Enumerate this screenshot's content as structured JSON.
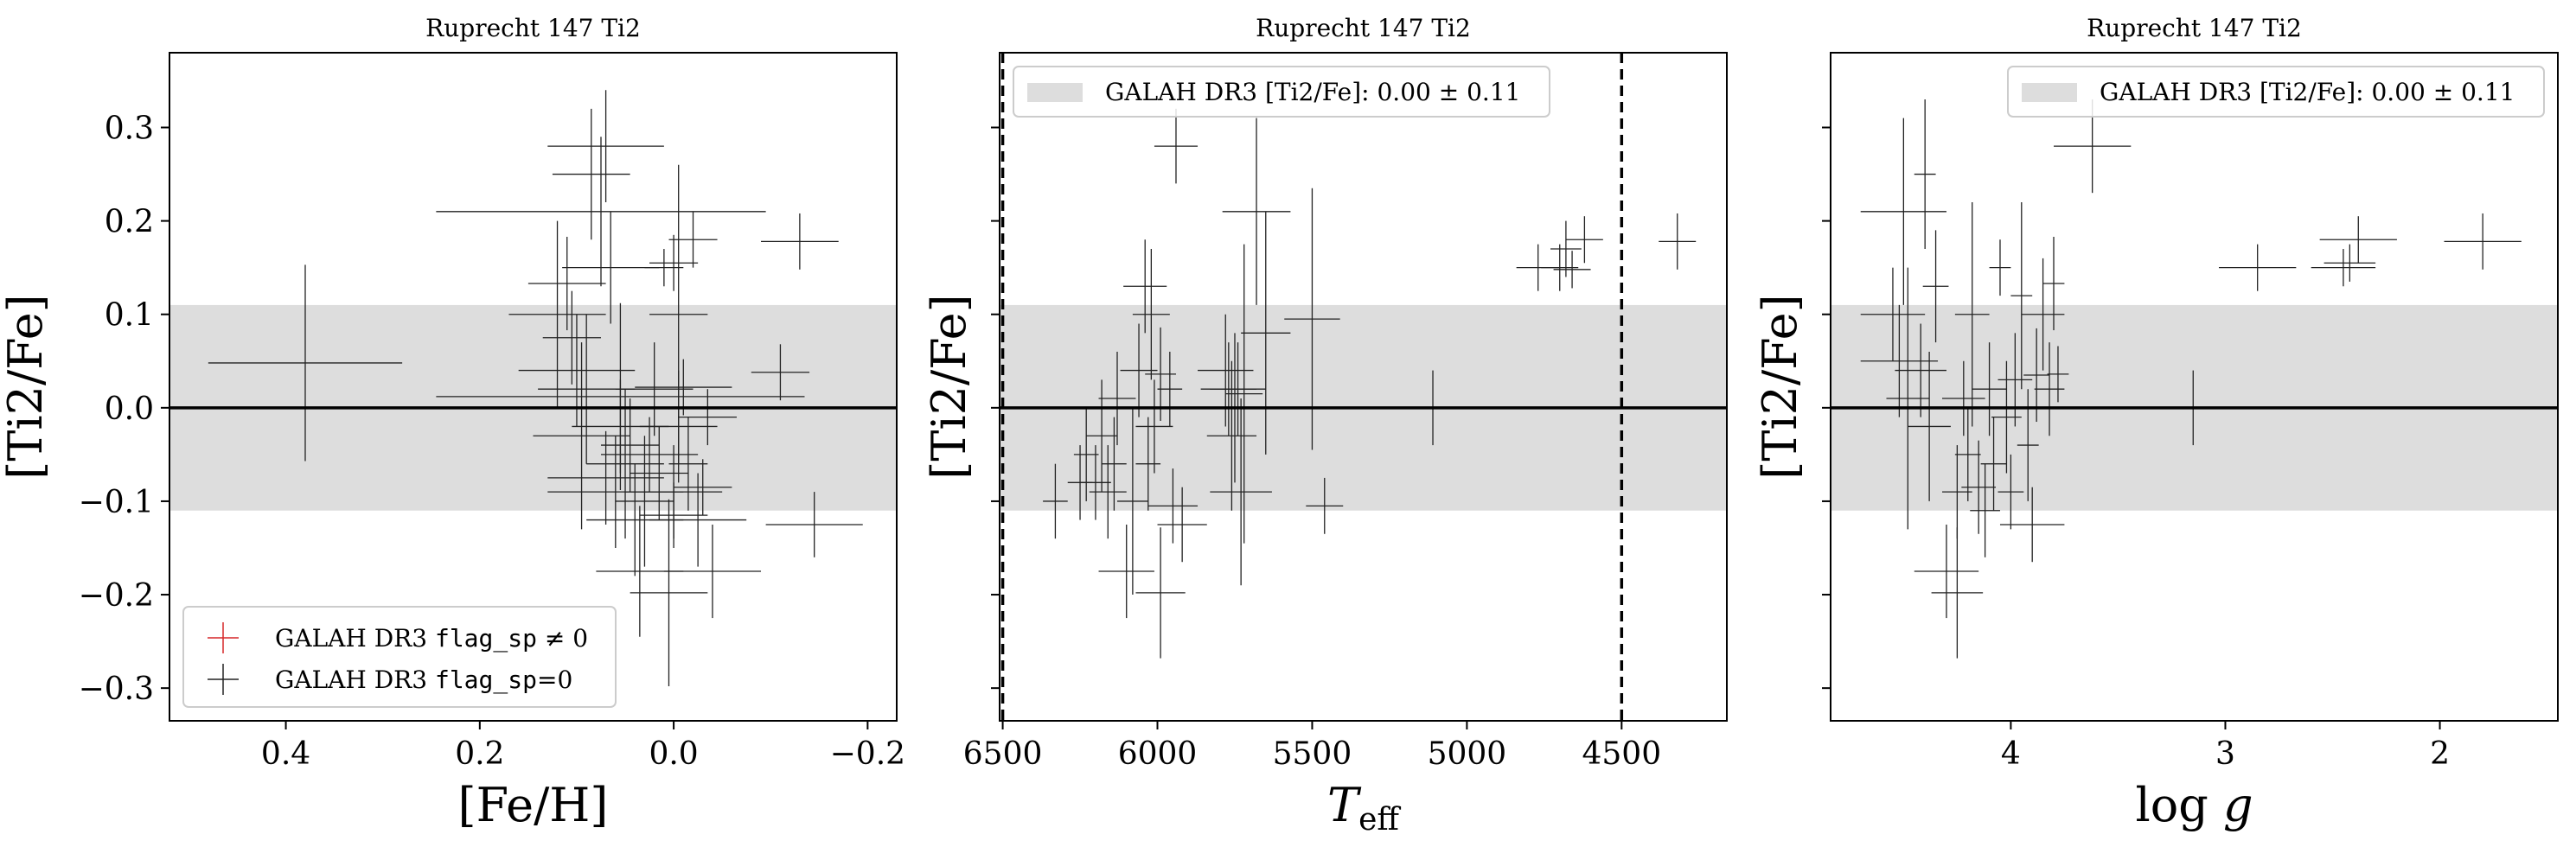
{
  "figure": {
    "colors": {
      "band": "#dddddd",
      "errorbar": "#222222",
      "flagged": "#d62728",
      "frame": "#000000"
    }
  },
  "chart_data": [
    {
      "type": "scatter",
      "title": "Ruprecht 147 Ti2",
      "xlabel": "[Fe/H]",
      "ylabel": "[Ti2/Fe]",
      "xlim": [
        0.52,
        -0.23
      ],
      "ylim": [
        -0.335,
        0.38
      ],
      "x_inverted": true,
      "xticks": [
        0.4,
        0.2,
        0.0,
        -0.2
      ],
      "xtick_labels": [
        "0.4",
        "0.2",
        "0.0",
        "−0.2"
      ],
      "yticks": [
        -0.3,
        -0.2,
        -0.1,
        0.0,
        0.1,
        0.2,
        0.3
      ],
      "ytick_labels": [
        "−0.3",
        "−0.2",
        "−0.1",
        "0.0",
        "0.1",
        "0.2",
        "0.3"
      ],
      "show_ytick_labels": true,
      "band": {
        "center": 0.0,
        "half_width": 0.11
      },
      "hline": 0.0,
      "vlines": [],
      "legend": {
        "position": "lower-left",
        "entries": [
          {
            "marker": "flagged",
            "prefix": "GALAH DR3 ",
            "code": "flag_sp",
            "suffix": " ≠ 0"
          },
          {
            "marker": "plain",
            "prefix": "GALAH DR3 ",
            "code": "flag_sp",
            "suffix": "=0"
          }
        ]
      },
      "points": [
        {
          "x": 0.38,
          "y": 0.048,
          "xerr": 0.1,
          "yerr": 0.105
        },
        {
          "x": 0.12,
          "y": 0.1,
          "xerr": 0.05,
          "yerr": 0.1
        },
        {
          "x": 0.11,
          "y": 0.133,
          "xerr": 0.04,
          "yerr": 0.05
        },
        {
          "x": 0.105,
          "y": 0.075,
          "xerr": 0.03,
          "yerr": 0.05
        },
        {
          "x": 0.1,
          "y": 0.04,
          "xerr": 0.06,
          "yerr": 0.06
        },
        {
          "x": 0.09,
          "y": 0.02,
          "xerr": 0.05,
          "yerr": 0.08
        },
        {
          "x": 0.095,
          "y": -0.03,
          "xerr": 0.05,
          "yerr": 0.1
        },
        {
          "x": 0.085,
          "y": 0.25,
          "xerr": 0.04,
          "yerr": 0.07
        },
        {
          "x": 0.07,
          "y": 0.28,
          "xerr": 0.06,
          "yerr": 0.06
        },
        {
          "x": 0.075,
          "y": 0.21,
          "xerr": 0.17,
          "yerr": 0.08
        },
        {
          "x": 0.065,
          "y": 0.15,
          "xerr": 0.05,
          "yerr": 0.06
        },
        {
          "x": 0.07,
          "y": -0.075,
          "xerr": 0.06,
          "yerr": 0.05
        },
        {
          "x": 0.06,
          "y": -0.09,
          "xerr": 0.07,
          "yerr": 0.06
        },
        {
          "x": 0.055,
          "y": -0.02,
          "xerr": 0.05,
          "yerr": 0.05
        },
        {
          "x": 0.055,
          "y": 0.012,
          "xerr": 0.19,
          "yerr": 0.1
        },
        {
          "x": 0.05,
          "y": -0.06,
          "xerr": 0.04,
          "yerr": 0.08
        },
        {
          "x": 0.045,
          "y": -0.04,
          "xerr": 0.03,
          "yerr": 0.05
        },
        {
          "x": 0.04,
          "y": -0.12,
          "xerr": 0.05,
          "yerr": 0.06
        },
        {
          "x": 0.035,
          "y": -0.175,
          "xerr": 0.045,
          "yerr": 0.07
        },
        {
          "x": 0.03,
          "y": -0.1,
          "xerr": 0.03,
          "yerr": 0.07
        },
        {
          "x": 0.025,
          "y": -0.05,
          "xerr": 0.05,
          "yerr": 0.04
        },
        {
          "x": 0.02,
          "y": 0.02,
          "xerr": 0.04,
          "yerr": 0.05
        },
        {
          "x": 0.015,
          "y": -0.07,
          "xerr": 0.03,
          "yerr": 0.05
        },
        {
          "x": 0.01,
          "y": 0.15,
          "xerr": 0.02,
          "yerr": 0.02
        },
        {
          "x": 0.005,
          "y": -0.198,
          "xerr": 0.04,
          "yerr": 0.1
        },
        {
          "x": 0.0,
          "y": 0.155,
          "xerr": 0.025,
          "yerr": 0.03
        },
        {
          "x": -0.005,
          "y": 0.1,
          "xerr": 0.03,
          "yerr": 0.16
        },
        {
          "x": -0.005,
          "y": -0.02,
          "xerr": 0.04,
          "yerr": 0.06
        },
        {
          "x": 0.0,
          "y": -0.09,
          "xerr": 0.05,
          "yerr": 0.05
        },
        {
          "x": 0.0,
          "y": -0.115,
          "xerr": 0.035,
          "yerr": 0.035
        },
        {
          "x": -0.01,
          "y": 0.022,
          "xerr": 0.05,
          "yerr": 0.03
        },
        {
          "x": -0.015,
          "y": -0.06,
          "xerr": 0.02,
          "yerr": 0.05
        },
        {
          "x": -0.02,
          "y": 0.18,
          "xerr": 0.025,
          "yerr": 0.03
        },
        {
          "x": -0.025,
          "y": -0.12,
          "xerr": 0.05,
          "yerr": 0.05
        },
        {
          "x": -0.03,
          "y": -0.085,
          "xerr": 0.03,
          "yerr": 0.03
        },
        {
          "x": -0.035,
          "y": -0.01,
          "xerr": 0.03,
          "yerr": 0.03
        },
        {
          "x": -0.04,
          "y": -0.175,
          "xerr": 0.05,
          "yerr": 0.05
        },
        {
          "x": -0.11,
          "y": 0.038,
          "xerr": 0.03,
          "yerr": 0.03
        },
        {
          "x": -0.13,
          "y": 0.178,
          "xerr": 0.04,
          "yerr": 0.03
        },
        {
          "x": -0.145,
          "y": -0.125,
          "xerr": 0.05,
          "yerr": 0.035
        }
      ]
    },
    {
      "type": "scatter",
      "title": "Ruprecht 147 Ti2",
      "xlabel": "T_eff",
      "xlabel_main": "T",
      "xlabel_sub": "eff",
      "ylabel": "[Ti2/Fe]",
      "xlim": [
        6510,
        4160
      ],
      "ylim": [
        -0.335,
        0.38
      ],
      "x_inverted": true,
      "xticks": [
        6500,
        6000,
        5500,
        5000,
        4500
      ],
      "xtick_labels": [
        "6500",
        "6000",
        "5500",
        "5000",
        "4500"
      ],
      "yticks": [
        -0.3,
        -0.2,
        -0.1,
        0.0,
        0.1,
        0.2,
        0.3
      ],
      "ytick_labels": [
        "−0.3",
        "−0.2",
        "−0.1",
        "0.0",
        "0.1",
        "0.2",
        "0.3"
      ],
      "show_ytick_labels": false,
      "band": {
        "center": 0.0,
        "half_width": 0.11
      },
      "hline": 0.0,
      "vlines": [
        6500,
        4500
      ],
      "legend": {
        "position": "upper-left",
        "entries": [
          {
            "marker": "band",
            "text": "GALAH DR3 [Ti2/Fe]: 0.00 ± 0.11"
          }
        ]
      },
      "points": [
        {
          "x": 6330,
          "y": -0.1,
          "xerr": 40,
          "yerr": 0.04
        },
        {
          "x": 6250,
          "y": -0.08,
          "xerr": 40,
          "yerr": 0.04
        },
        {
          "x": 6230,
          "y": -0.05,
          "xerr": 40,
          "yerr": 0.05
        },
        {
          "x": 6200,
          "y": -0.08,
          "xerr": 50,
          "yerr": 0.04
        },
        {
          "x": 6180,
          "y": -0.03,
          "xerr": 50,
          "yerr": 0.06
        },
        {
          "x": 6160,
          "y": -0.09,
          "xerr": 60,
          "yerr": 0.05
        },
        {
          "x": 6140,
          "y": -0.06,
          "xerr": 40,
          "yerr": 0.05
        },
        {
          "x": 6130,
          "y": 0.01,
          "xerr": 60,
          "yerr": 0.05
        },
        {
          "x": 6100,
          "y": -0.175,
          "xerr": 90,
          "yerr": 0.05
        },
        {
          "x": 6080,
          "y": -0.1,
          "xerr": 50,
          "yerr": 0.1
        },
        {
          "x": 6060,
          "y": 0.04,
          "xerr": 60,
          "yerr": 0.05
        },
        {
          "x": 6040,
          "y": 0.13,
          "xerr": 70,
          "yerr": 0.05
        },
        {
          "x": 6030,
          "y": -0.06,
          "xerr": 40,
          "yerr": 0.05
        },
        {
          "x": 6020,
          "y": 0.1,
          "xerr": 60,
          "yerr": 0.07
        },
        {
          "x": 6010,
          "y": -0.02,
          "xerr": 60,
          "yerr": 0.05
        },
        {
          "x": 5990,
          "y": 0.036,
          "xerr": 50,
          "yerr": 0.05
        },
        {
          "x": 5960,
          "y": 0.02,
          "xerr": 40,
          "yerr": 0.04
        },
        {
          "x": 5950,
          "y": -0.105,
          "xerr": 80,
          "yerr": 0.04
        },
        {
          "x": 5990,
          "y": -0.198,
          "xerr": 80,
          "yerr": 0.07
        },
        {
          "x": 5940,
          "y": 0.28,
          "xerr": 70,
          "yerr": 0.04
        },
        {
          "x": 5920,
          "y": -0.125,
          "xerr": 80,
          "yerr": 0.04
        },
        {
          "x": 5780,
          "y": 0.04,
          "xerr": 90,
          "yerr": 0.06
        },
        {
          "x": 5770,
          "y": 0.02,
          "xerr": 90,
          "yerr": 0.05
        },
        {
          "x": 5760,
          "y": -0.03,
          "xerr": 80,
          "yerr": 0.08
        },
        {
          "x": 5750,
          "y": 0.0,
          "xerr": 70,
          "yerr": 0.08
        },
        {
          "x": 5740,
          "y": 0.02,
          "xerr": 90,
          "yerr": 0.05
        },
        {
          "x": 5730,
          "y": -0.09,
          "xerr": 100,
          "yerr": 0.1
        },
        {
          "x": 5720,
          "y": 0.015,
          "xerr": 60,
          "yerr": 0.16
        },
        {
          "x": 5680,
          "y": 0.21,
          "xerr": 110,
          "yerr": 0.1
        },
        {
          "x": 5650,
          "y": 0.08,
          "xerr": 80,
          "yerr": 0.13
        },
        {
          "x": 5500,
          "y": 0.095,
          "xerr": 90,
          "yerr": 0.14
        },
        {
          "x": 5460,
          "y": -0.105,
          "xerr": 60,
          "yerr": 0.03
        },
        {
          "x": 5110,
          "y": 0.0,
          "xerr": 10,
          "yerr": 0.04
        },
        {
          "x": 4770,
          "y": 0.15,
          "xerr": 70,
          "yerr": 0.025
        },
        {
          "x": 4700,
          "y": 0.15,
          "xerr": 60,
          "yerr": 0.025
        },
        {
          "x": 4680,
          "y": 0.17,
          "xerr": 50,
          "yerr": 0.03
        },
        {
          "x": 4660,
          "y": 0.148,
          "xerr": 60,
          "yerr": 0.02
        },
        {
          "x": 4620,
          "y": 0.18,
          "xerr": 60,
          "yerr": 0.025
        },
        {
          "x": 4320,
          "y": 0.178,
          "xerr": 60,
          "yerr": 0.03
        }
      ]
    },
    {
      "type": "scatter",
      "title": "Ruprecht 147 Ti2",
      "xlabel": "log g",
      "xlabel_main": "log",
      "xlabel_italic": "g",
      "ylabel": "[Ti2/Fe]",
      "xlim": [
        4.84,
        1.45
      ],
      "ylim": [
        -0.335,
        0.38
      ],
      "x_inverted": true,
      "xticks": [
        4,
        3,
        2
      ],
      "xtick_labels": [
        "4",
        "3",
        "2"
      ],
      "yticks": [
        -0.3,
        -0.2,
        -0.1,
        0.0,
        0.1,
        0.2,
        0.3
      ],
      "ytick_labels": [
        "−0.3",
        "−0.2",
        "−0.1",
        "0.0",
        "0.1",
        "0.2",
        "0.3"
      ],
      "show_ytick_labels": false,
      "band": {
        "center": 0.0,
        "half_width": 0.11
      },
      "hline": 0.0,
      "vlines": [],
      "legend": {
        "position": "upper-right",
        "entries": [
          {
            "marker": "band",
            "text": "GALAH DR3 [Ti2/Fe]: 0.00 ± 0.11"
          }
        ]
      },
      "points": [
        {
          "x": 4.55,
          "y": 0.1,
          "xerr": 0.15,
          "yerr": 0.05
        },
        {
          "x": 4.52,
          "y": 0.05,
          "xerr": 0.18,
          "yerr": 0.06
        },
        {
          "x": 4.5,
          "y": 0.21,
          "xerr": 0.2,
          "yerr": 0.1
        },
        {
          "x": 4.48,
          "y": 0.01,
          "xerr": 0.1,
          "yerr": 0.14
        },
        {
          "x": 4.42,
          "y": 0.04,
          "xerr": 0.12,
          "yerr": 0.05
        },
        {
          "x": 4.4,
          "y": 0.25,
          "xerr": 0.05,
          "yerr": 0.08
        },
        {
          "x": 4.38,
          "y": -0.02,
          "xerr": 0.1,
          "yerr": 0.08
        },
        {
          "x": 4.35,
          "y": 0.13,
          "xerr": 0.06,
          "yerr": 0.06
        },
        {
          "x": 4.3,
          "y": -0.175,
          "xerr": 0.15,
          "yerr": 0.05
        },
        {
          "x": 4.25,
          "y": -0.198,
          "xerr": 0.12,
          "yerr": 0.07
        },
        {
          "x": 4.25,
          "y": -0.09,
          "xerr": 0.07,
          "yerr": 0.05
        },
        {
          "x": 4.22,
          "y": 0.01,
          "xerr": 0.1,
          "yerr": 0.04
        },
        {
          "x": 4.2,
          "y": -0.05,
          "xerr": 0.06,
          "yerr": 0.05
        },
        {
          "x": 4.18,
          "y": 0.1,
          "xerr": 0.08,
          "yerr": 0.12
        },
        {
          "x": 4.15,
          "y": -0.085,
          "xerr": 0.08,
          "yerr": 0.05
        },
        {
          "x": 4.12,
          "y": -0.11,
          "xerr": 0.07,
          "yerr": 0.05
        },
        {
          "x": 4.1,
          "y": 0.02,
          "xerr": 0.08,
          "yerr": 0.05
        },
        {
          "x": 4.08,
          "y": -0.06,
          "xerr": 0.06,
          "yerr": 0.05
        },
        {
          "x": 4.05,
          "y": 0.15,
          "xerr": 0.05,
          "yerr": 0.03
        },
        {
          "x": 4.02,
          "y": -0.01,
          "xerr": 0.07,
          "yerr": 0.06
        },
        {
          "x": 4.0,
          "y": -0.09,
          "xerr": 0.06,
          "yerr": 0.04
        },
        {
          "x": 3.98,
          "y": 0.03,
          "xerr": 0.08,
          "yerr": 0.05
        },
        {
          "x": 3.95,
          "y": 0.12,
          "xerr": 0.05,
          "yerr": 0.1
        },
        {
          "x": 3.92,
          "y": -0.04,
          "xerr": 0.05,
          "yerr": 0.06
        },
        {
          "x": 3.9,
          "y": -0.125,
          "xerr": 0.15,
          "yerr": 0.04
        },
        {
          "x": 3.88,
          "y": 0.035,
          "xerr": 0.06,
          "yerr": 0.05
        },
        {
          "x": 3.85,
          "y": 0.1,
          "xerr": 0.1,
          "yerr": 0.06
        },
        {
          "x": 3.82,
          "y": 0.02,
          "xerr": 0.07,
          "yerr": 0.05
        },
        {
          "x": 3.8,
          "y": 0.133,
          "xerr": 0.05,
          "yerr": 0.05
        },
        {
          "x": 3.78,
          "y": 0.036,
          "xerr": 0.05,
          "yerr": 0.03
        },
        {
          "x": 3.62,
          "y": 0.28,
          "xerr": 0.18,
          "yerr": 0.05
        },
        {
          "x": 3.15,
          "y": 0.0,
          "xerr": 0.01,
          "yerr": 0.04
        },
        {
          "x": 2.85,
          "y": 0.15,
          "xerr": 0.18,
          "yerr": 0.025
        },
        {
          "x": 2.45,
          "y": 0.15,
          "xerr": 0.15,
          "yerr": 0.02
        },
        {
          "x": 2.42,
          "y": 0.155,
          "xerr": 0.12,
          "yerr": 0.02
        },
        {
          "x": 2.38,
          "y": 0.18,
          "xerr": 0.18,
          "yerr": 0.025
        },
        {
          "x": 1.8,
          "y": 0.178,
          "xerr": 0.18,
          "yerr": 0.03
        }
      ]
    }
  ]
}
